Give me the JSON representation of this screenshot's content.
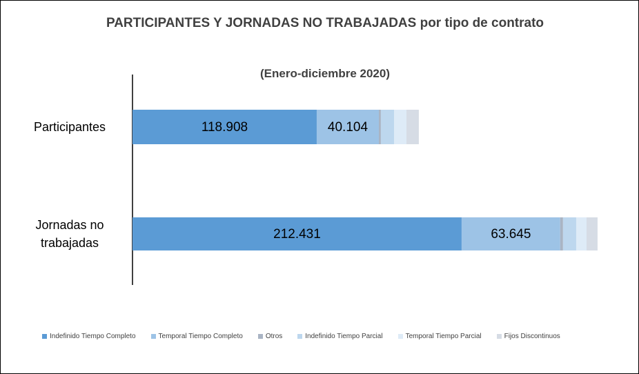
{
  "chart_data": {
    "type": "stacked_bar_horizontal",
    "title": "PARTICIPANTES  Y JORNADAS NO TRABAJADAS  por tipo de contrato",
    "subtitle": "(Enero-diciembre 2020)",
    "categories": [
      "Participantes",
      "Jornadas no trabajadas"
    ],
    "xlim": [
      0,
      310000
    ],
    "legend": "bottom",
    "series": [
      {
        "name": "Indefinido Tiempo Completo",
        "color": "#5b9bd5",
        "values": [
          118908,
          212431
        ],
        "value_labels": [
          "118.908",
          "212.431"
        ]
      },
      {
        "name": "Temporal Tiempo Completo",
        "color": "#9dc3e6",
        "values": [
          40104,
          63645
        ],
        "value_labels": [
          "40.104",
          "63.645"
        ]
      },
      {
        "name": "Otros",
        "color": "#a9b4c4",
        "values": [
          1300,
          1800
        ]
      },
      {
        "name": "Indefinido Tiempo Parcial",
        "color": "#bdd7ee",
        "values": [
          8500,
          8500
        ]
      },
      {
        "name": "Temporal Tiempo Parcial",
        "color": "#deebf7",
        "values": [
          8000,
          6700
        ]
      },
      {
        "name": "Fijos Discontinuos",
        "color": "#d6dce5",
        "values": [
          8000,
          7100
        ]
      }
    ]
  }
}
